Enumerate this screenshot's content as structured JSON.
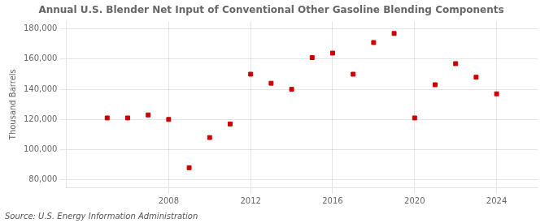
{
  "chart_data": {
    "type": "scatter",
    "title": "Annual U.S. Blender Net Input of Conventional Other Gasoline Blending Components",
    "ylabel": "Thousand Barrels",
    "annotations": [
      "Source: U.S. Energy Information Administration"
    ],
    "x": [
      2005,
      2006,
      2007,
      2008,
      2009,
      2010,
      2011,
      2012,
      2013,
      2014,
      2015,
      2016,
      2017,
      2018,
      2019,
      2020,
      2021,
      2022,
      2023,
      2024
    ],
    "values": [
      121000,
      121000,
      123000,
      120000,
      88000,
      108000,
      117000,
      150000,
      144000,
      140000,
      161000,
      164000,
      150000,
      171000,
      177000,
      121000,
      143000,
      157000,
      148000,
      137000
    ],
    "color": "#cc0000",
    "marker": "square",
    "xlim": [
      2003.0,
      2026.0
    ],
    "xticks": [
      2008,
      2012,
      2016,
      2020,
      2024
    ],
    "ylim": [
      75000,
      185000
    ],
    "yticks": [
      {
        "value": 80000,
        "label": "80,000"
      },
      {
        "value": 100000,
        "label": "100,000"
      },
      {
        "value": 120000,
        "label": "120,000"
      },
      {
        "value": 140000,
        "label": "140,000"
      },
      {
        "value": 160000,
        "label": "160,000"
      },
      {
        "value": 180000,
        "label": "180,000"
      }
    ],
    "grid": true
  }
}
